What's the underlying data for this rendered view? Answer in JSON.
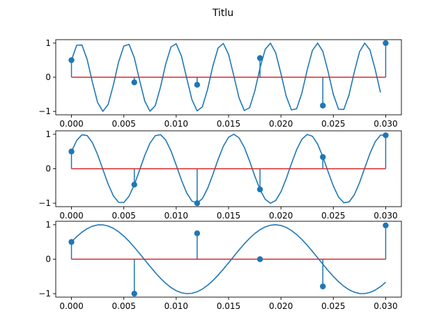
{
  "title": "Titlu",
  "colors": {
    "line": "#1f77b4",
    "stem": "#1f77b4",
    "baseline": "#d62728",
    "axes": "#000000"
  },
  "chart_data": [
    {
      "type": "line",
      "xlim": [
        -0.0015,
        0.0315
      ],
      "ylim": [
        -1.1,
        1.1
      ],
      "x_ticks": [
        "0.000",
        "0.005",
        "0.010",
        "0.015",
        "0.020",
        "0.025",
        "0.030"
      ],
      "x_tick_values": [
        0,
        0.005,
        0.01,
        0.015,
        0.02,
        0.025,
        0.03
      ],
      "y_ticks": [
        "−1",
        "0",
        "1"
      ],
      "y_tick_values": [
        -1,
        0,
        1
      ],
      "grid": false,
      "line": {
        "frequency_hz": 220,
        "phase_deg": 30,
        "amplitude": 1,
        "x_start": 0,
        "x_end": 0.0295,
        "sample_step": 0.0005
      },
      "stems": {
        "x": [
          0,
          0.006,
          0.012,
          0.018,
          0.024,
          0.03
        ],
        "y": [
          0.5,
          -0.15,
          -0.22,
          0.56,
          -0.83,
          1.0
        ]
      },
      "baseline": {
        "y": 0,
        "x_range": [
          0,
          0.03
        ]
      }
    },
    {
      "type": "line",
      "xlim": [
        -0.0015,
        0.0315
      ],
      "ylim": [
        -1.1,
        1.1
      ],
      "x_ticks": [
        "0.000",
        "0.005",
        "0.010",
        "0.015",
        "0.020",
        "0.025",
        "0.030"
      ],
      "x_tick_values": [
        0,
        0.005,
        0.01,
        0.015,
        0.02,
        0.025,
        0.03
      ],
      "y_ticks": [
        "−1",
        "0",
        "1"
      ],
      "y_tick_values": [
        -1,
        0,
        1
      ],
      "grid": false,
      "line": {
        "frequency_hz": 140,
        "phase_deg": 30,
        "amplitude": 1,
        "x_start": 0,
        "x_end": 0.03,
        "sample_step": 0.0005
      },
      "stems": {
        "x": [
          0,
          0.006,
          0.012,
          0.018,
          0.024,
          0.03
        ],
        "y": [
          0.5,
          -0.46,
          -1.0,
          -0.6,
          0.34,
          0.97
        ]
      },
      "baseline": {
        "y": 0,
        "x_range": [
          0,
          0.03
        ]
      }
    },
    {
      "type": "line",
      "xlim": [
        -0.0015,
        0.0315
      ],
      "ylim": [
        -1.1,
        1.1
      ],
      "x_ticks": [
        "0.000",
        "0.005",
        "0.010",
        "0.015",
        "0.020",
        "0.025",
        "0.030"
      ],
      "x_tick_values": [
        0,
        0.005,
        0.01,
        0.015,
        0.02,
        0.025,
        0.03
      ],
      "y_ticks": [
        "−1",
        "0",
        "1"
      ],
      "y_tick_values": [
        -1,
        0,
        1
      ],
      "grid": false,
      "line": {
        "frequency_hz": 60,
        "phase_deg": 30,
        "amplitude": 1,
        "x_start": 0,
        "x_end": 0.03,
        "sample_step": 0.0005
      },
      "stems": {
        "x": [
          0,
          0.006,
          0.012,
          0.018,
          0.024,
          0.03
        ],
        "y": [
          0.5,
          -1.0,
          0.75,
          0.0,
          -0.79,
          0.98
        ]
      },
      "baseline": {
        "y": 0,
        "x_range": [
          0,
          0.03
        ]
      }
    }
  ]
}
